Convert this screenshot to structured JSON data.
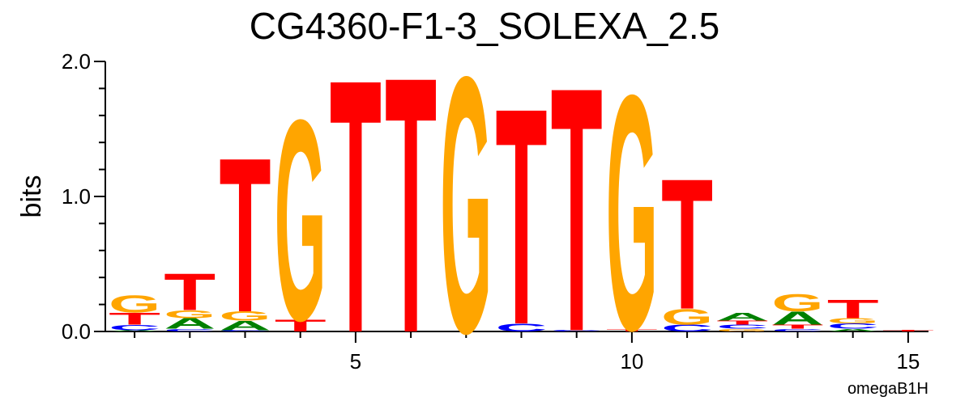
{
  "chart_data": {
    "type": "sequence-logo",
    "title": "CG4360-F1-3_SOLEXA_2.5",
    "ylabel": "bits",
    "ylim": [
      0,
      2.0
    ],
    "y_ticks": [
      "0.0",
      "1.0",
      "2.0"
    ],
    "x_ticks": [
      "5",
      "10",
      "15"
    ],
    "x_tick_values": [
      5,
      10,
      15
    ],
    "positions": 15,
    "footer": "omegaB1H",
    "colors": {
      "A": "#008000",
      "C": "#0000ff",
      "G": "#ffa500",
      "T": "#ff0000"
    },
    "stacks": [
      {
        "pos": 1,
        "letters": [
          [
            "A",
            0.01
          ],
          [
            "C",
            0.04
          ],
          [
            "T",
            0.09
          ],
          [
            "G",
            0.13
          ]
        ]
      },
      {
        "pos": 2,
        "letters": [
          [
            "C",
            0.02
          ],
          [
            "A",
            0.08
          ],
          [
            "G",
            0.06
          ],
          [
            "T",
            0.28
          ]
        ]
      },
      {
        "pos": 3,
        "letters": [
          [
            "C",
            0.01
          ],
          [
            "A",
            0.07
          ],
          [
            "G",
            0.07
          ],
          [
            "T",
            1.17
          ]
        ]
      },
      {
        "pos": 4,
        "letters": [
          [
            "T",
            0.09
          ],
          [
            "G",
            1.52
          ]
        ]
      },
      {
        "pos": 5,
        "letters": [
          [
            "T",
            1.92
          ]
        ]
      },
      {
        "pos": 6,
        "letters": [
          [
            "T",
            1.94
          ]
        ]
      },
      {
        "pos": 7,
        "letters": [
          [
            "G",
            1.94
          ]
        ]
      },
      {
        "pos": 8,
        "letters": [
          [
            "C",
            0.06
          ],
          [
            "T",
            1.64
          ]
        ]
      },
      {
        "pos": 9,
        "letters": [
          [
            "C",
            0.01
          ],
          [
            "T",
            1.85
          ]
        ]
      },
      {
        "pos": 10,
        "letters": [
          [
            "T",
            0.02
          ],
          [
            "G",
            1.78
          ]
        ]
      },
      {
        "pos": 11,
        "letters": [
          [
            "C",
            0.05
          ],
          [
            "G",
            0.12
          ],
          [
            "T",
            0.99
          ]
        ]
      },
      {
        "pos": 12,
        "letters": [
          [
            "G",
            0.02
          ],
          [
            "C",
            0.03
          ],
          [
            "T",
            0.03
          ],
          [
            "A",
            0.06
          ]
        ]
      },
      {
        "pos": 13,
        "letters": [
          [
            "C",
            0.02
          ],
          [
            "T",
            0.03
          ],
          [
            "A",
            0.1
          ],
          [
            "G",
            0.13
          ]
        ]
      },
      {
        "pos": 14,
        "letters": [
          [
            "A",
            0.02
          ],
          [
            "C",
            0.04
          ],
          [
            "G",
            0.04
          ],
          [
            "T",
            0.14
          ]
        ]
      },
      {
        "pos": 15,
        "letters": [
          [
            "T",
            0.01
          ]
        ]
      }
    ]
  }
}
